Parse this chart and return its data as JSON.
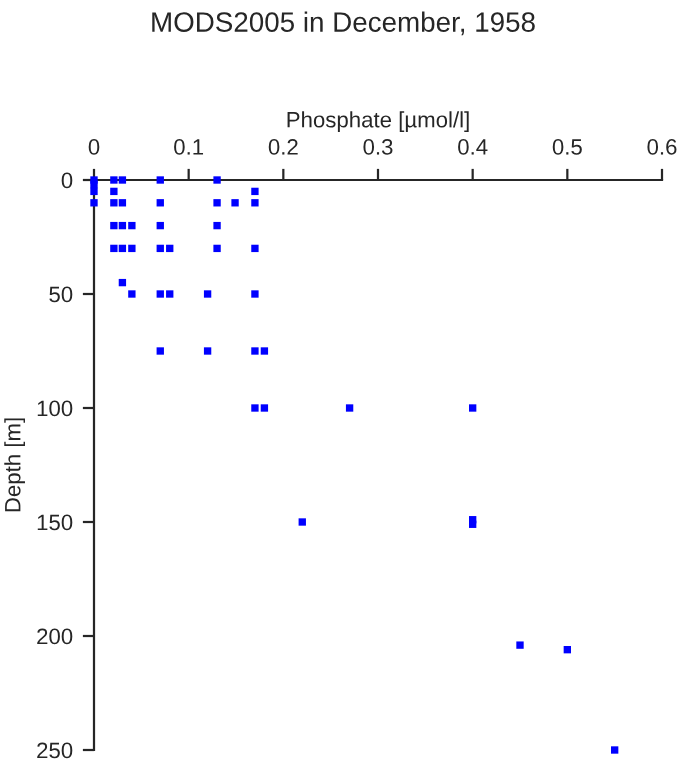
{
  "chart_data": {
    "type": "scatter",
    "title": "MODS2005 in December, 1958",
    "xlabel": "Phosphate [µmol/l]",
    "ylabel": "Depth [m]",
    "x": [
      0,
      0.021,
      0.03,
      0.07,
      0.13,
      0,
      0,
      0.021,
      0.17,
      0,
      0.021,
      0.03,
      0.07,
      0.13,
      0.149,
      0.17,
      0.021,
      0.03,
      0.04,
      0.07,
      0.13,
      0.021,
      0.03,
      0.04,
      0.07,
      0.08,
      0.13,
      0.17,
      0.03,
      0.04,
      0.07,
      0.08,
      0.12,
      0.17,
      0.07,
      0.12,
      0.17,
      0.18,
      0.17,
      0.18,
      0.27,
      0.4,
      0.22,
      0.4,
      0.4,
      0.45,
      0.5,
      0.55
    ],
    "series": [
      {
        "color": "#0000ff",
        "values": [
          0,
          0,
          0,
          0,
          0,
          2,
          5,
          5,
          5,
          10,
          10,
          10,
          10,
          10,
          10,
          10,
          20,
          20,
          20,
          20,
          20,
          30,
          30,
          30,
          30,
          30,
          30,
          30,
          45,
          50,
          50,
          50,
          50,
          50,
          75,
          75,
          75,
          75,
          100,
          100,
          100,
          100,
          150,
          149,
          151,
          204,
          206,
          250
        ]
      }
    ],
    "xlim": [
      0,
      0.6
    ],
    "xticks": [
      0,
      0.1,
      0.2,
      0.3,
      0.4,
      0.5,
      0.6
    ],
    "ylim": [
      250,
      0
    ],
    "yticks": [
      0,
      50,
      100,
      150,
      200,
      250
    ],
    "marker": "square",
    "grid": false,
    "legend": false
  }
}
